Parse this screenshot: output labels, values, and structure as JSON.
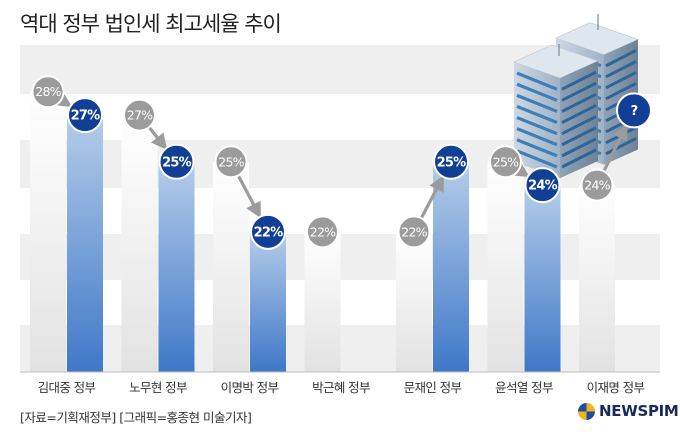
{
  "title": "역대 정부 법인세 최고세율 추이",
  "chart_data": {
    "type": "bar",
    "title": "역대 정부 법인세 최고세율 추이",
    "categories": [
      "김대중 정부",
      "노무현 정부",
      "이명박 정부",
      "박근혜 정부",
      "문재인 정부",
      "윤석열 정부",
      "이재명 정부"
    ],
    "series": [
      {
        "values": [
          28,
          27,
          25,
          22,
          22,
          25,
          24
        ],
        "labels": [
          "28%",
          "27%",
          "25%",
          "22%",
          "22%",
          "25%",
          "24%"
        ],
        "color": "#e6e6e6"
      },
      {
        "values": [
          27,
          25,
          22,
          null,
          25,
          24,
          null
        ],
        "labels": [
          "27%",
          "25%",
          "22%",
          null,
          "25%",
          "24%",
          "?"
        ],
        "color": "#3f78c8"
      }
    ],
    "ylim": [
      16,
      30
    ],
    "grid": true,
    "legend": "none"
  },
  "colors": {
    "gray_bubble": "#9b9b9b",
    "blue_bubble": "#113f95",
    "gray_bar": "#e6e6e6",
    "blue_bar": "#3f78c8",
    "band": "#efefef"
  },
  "footer": {
    "source": "[자료=기획재정부] [그래픽=홍종현 미술기자]"
  },
  "brand": {
    "name": "NEWSPIM",
    "icon": "ring-logo-icon"
  }
}
